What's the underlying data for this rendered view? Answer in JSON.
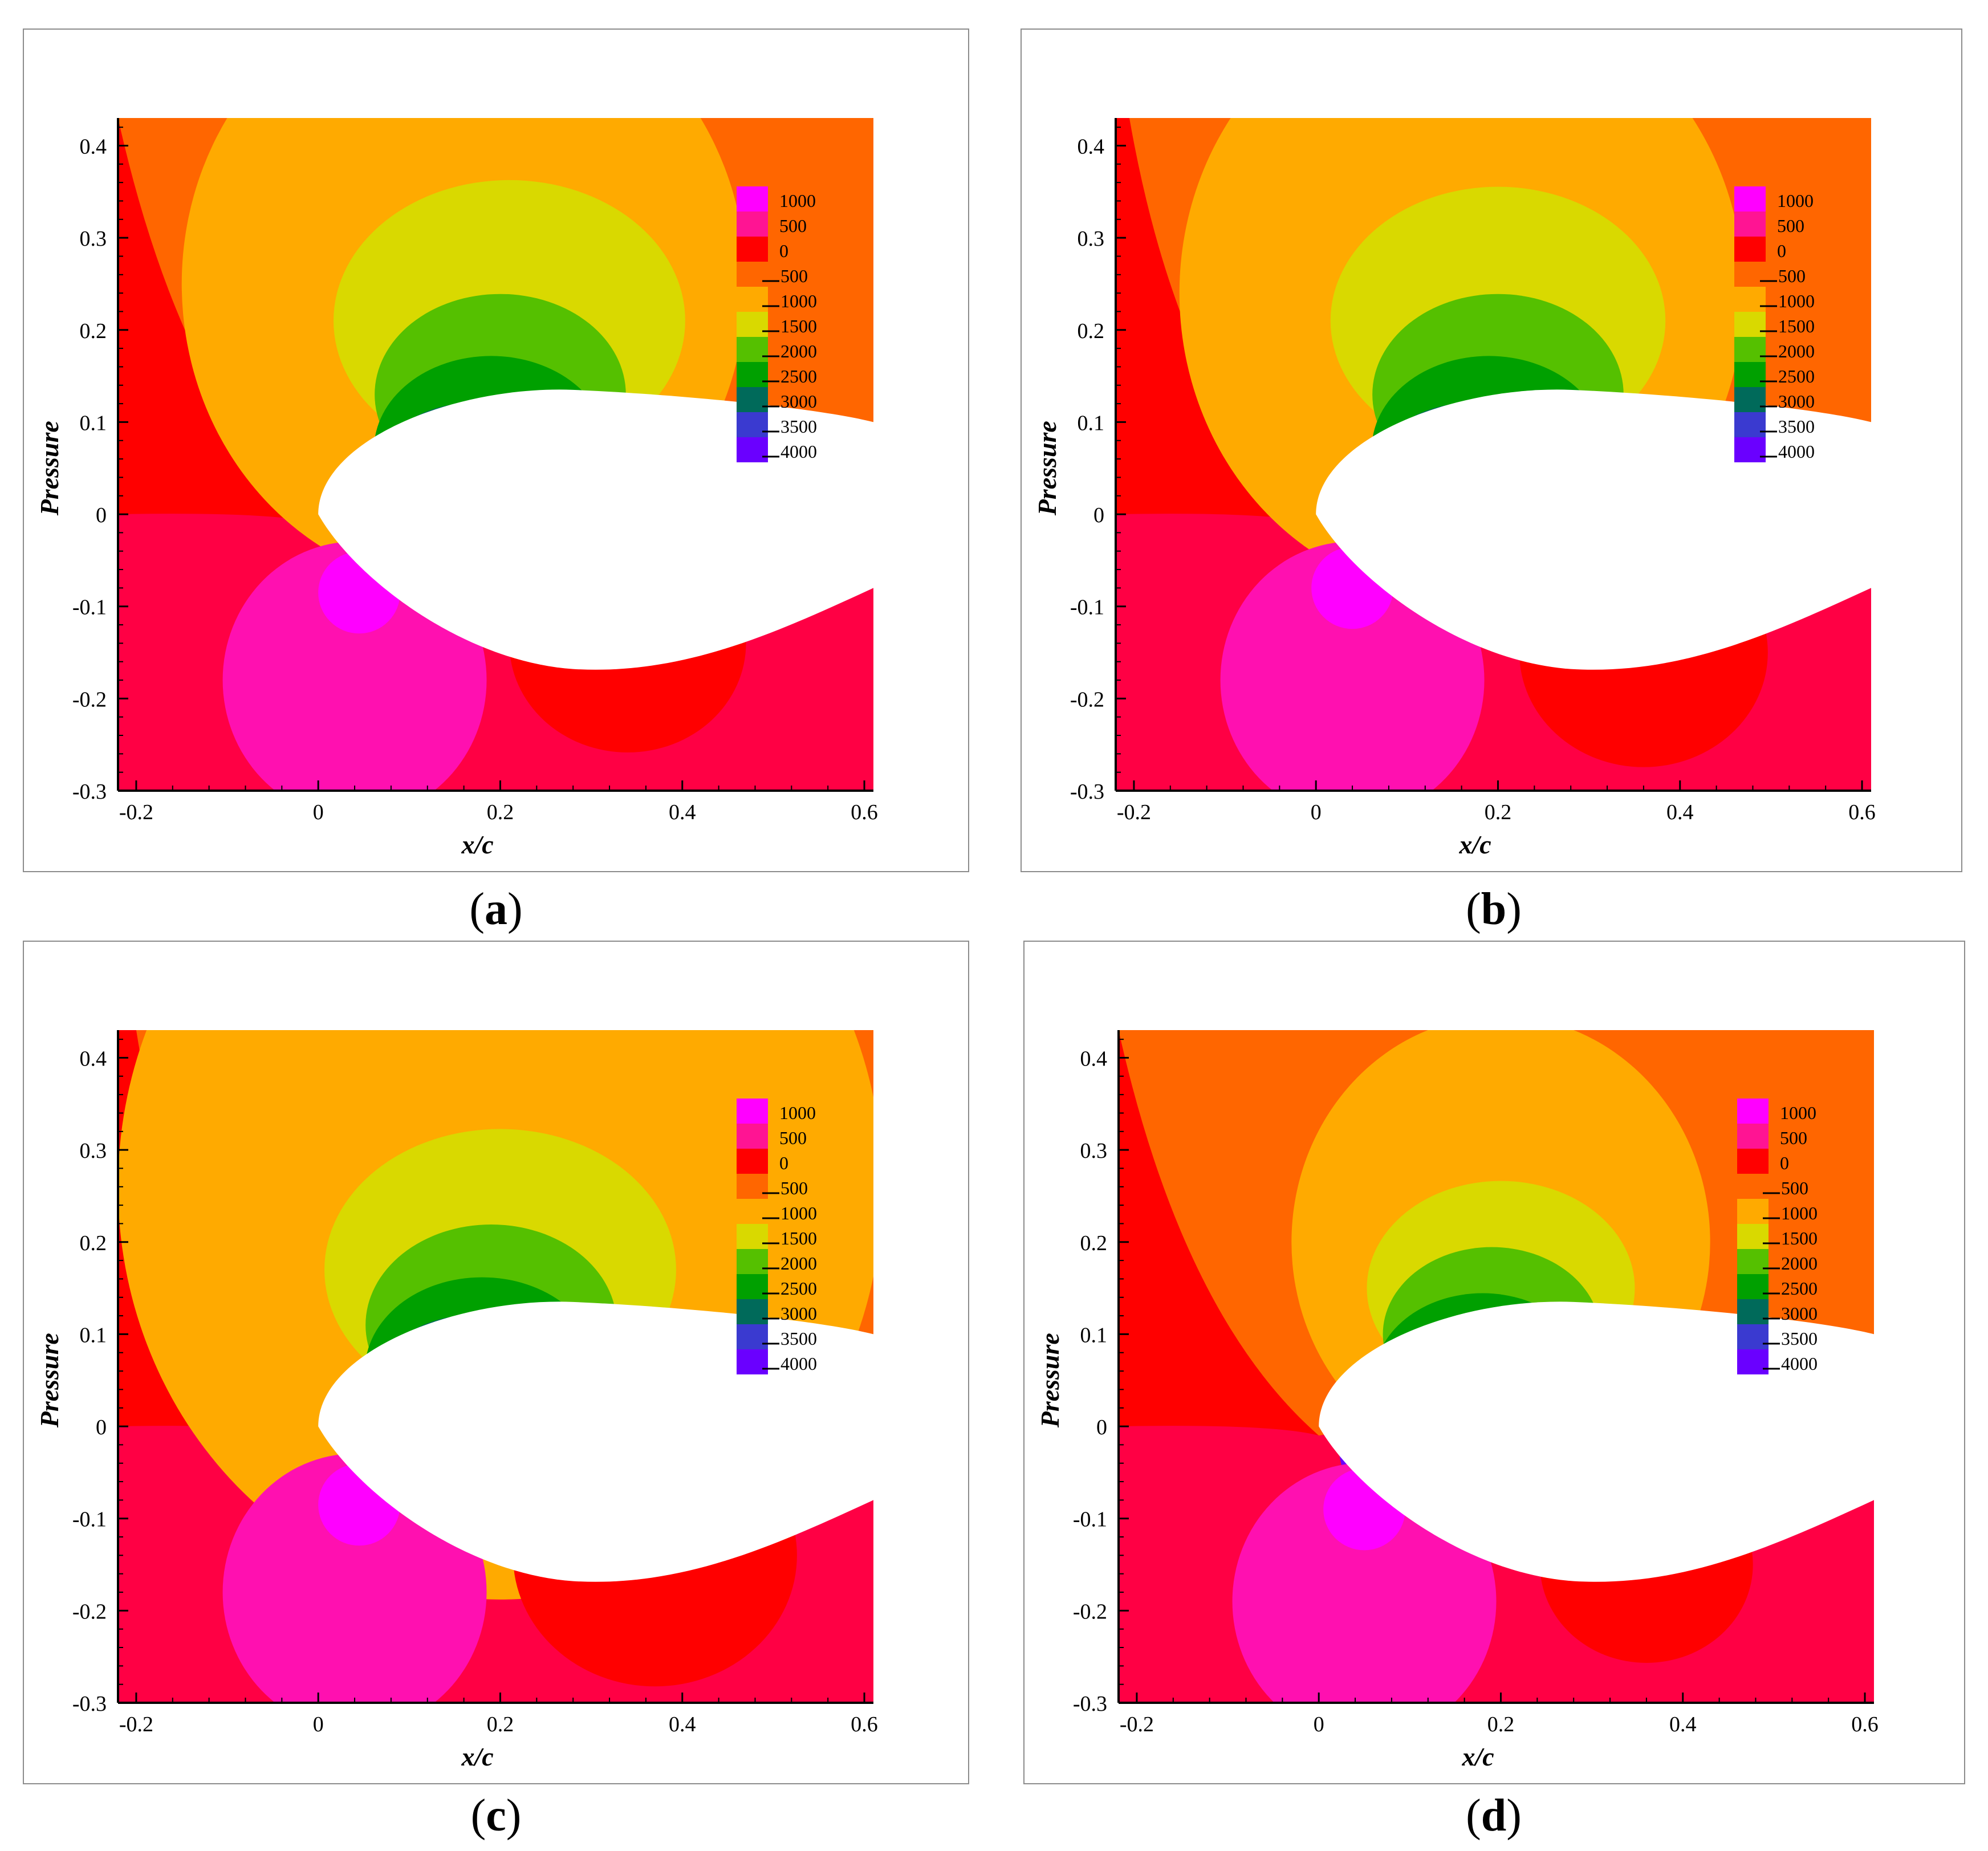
{
  "figure": {
    "panels": [
      {
        "caption_letter": "a"
      },
      {
        "caption_letter": "b"
      },
      {
        "caption_letter": "c"
      },
      {
        "caption_letter": "d"
      }
    ]
  },
  "chart_data": [
    {
      "type": "heatmap",
      "panel": "(a)",
      "xlabel": "x/c",
      "ylabel": "Pressure",
      "xlim": [
        -0.22,
        0.61
      ],
      "ylim": [
        -0.3,
        0.43
      ],
      "xticks": [
        "-0.2",
        "0",
        "0.2",
        "0.4",
        "0.6"
      ],
      "yticks": [
        "0.4",
        "0.3",
        "0.2",
        "0.1",
        "0",
        "-0.1",
        "-0.2",
        "-0.3"
      ],
      "legend": {
        "position": "top-right",
        "levels": [
          "1000",
          "500",
          "0",
          "-500",
          "-1000",
          "-1500",
          "-2000",
          "-2500",
          "-3000",
          "-3500",
          "-4000"
        ],
        "colors": [
          "#ff00ff",
          "#ff1493",
          "#ff0000",
          "#ff6600",
          "#ffaa00",
          "#d9d900",
          "#55c000",
          "#00a000",
          "#006a5a",
          "#3a3ad0",
          "#6a00ff"
        ]
      },
      "background_color": "#ff0044",
      "zones": {
        "upper_red_boundary_x_at_top": -0.22,
        "orange_circle": {
          "center": [
            0.16,
            0.25
          ],
          "radius": 0.31
        },
        "yellow_circle": {
          "center": [
            0.21,
            0.21
          ],
          "radius": 0.21
        },
        "yellowgreen_circle": {
          "center": [
            0.2,
            0.13
          ],
          "radius": 0.15
        },
        "green1_circle": {
          "center": [
            0.19,
            0.07
          ],
          "radius": 0.14
        },
        "green2_circle": {
          "center": [
            0.17,
            0.03
          ],
          "radius": 0.125
        },
        "dark_green_circle": {
          "center": [
            0.16,
            0.0
          ],
          "radius": 0.13
        },
        "blue_circle": {
          "center": [
            0.16,
            -0.02
          ],
          "radius": 0.15
        },
        "magenta_circle": {
          "center": [
            0.04,
            -0.18
          ],
          "radius": 0.145
        },
        "bright_magenta_circle": {
          "center": [
            0.045,
            -0.085
          ],
          "radius": 0.045
        },
        "red_low_circle": {
          "center": [
            0.34,
            -0.14
          ],
          "radius": 0.1
        }
      }
    },
    {
      "type": "heatmap",
      "panel": "(b)",
      "xlabel": "x/c",
      "ylabel": "Pressure",
      "xlim": [
        -0.22,
        0.61
      ],
      "ylim": [
        -0.3,
        0.43
      ],
      "xticks": [
        "-0.2",
        "0",
        "0.2",
        "0.4",
        "0.6"
      ],
      "yticks": [
        "0.4",
        "0.3",
        "0.2",
        "0.1",
        "0",
        "-0.1",
        "-0.2",
        "-0.3"
      ],
      "legend": {
        "position": "top-right",
        "levels": [
          "1000",
          "500",
          "0",
          "-500",
          "-1000",
          "-1500",
          "-2000",
          "-2500",
          "-3000",
          "-3500",
          "-4000"
        ],
        "colors": [
          "#ff00ff",
          "#ff1493",
          "#ff0000",
          "#ff6600",
          "#ffaa00",
          "#d9d900",
          "#55c000",
          "#00a000",
          "#006a5a",
          "#3a3ad0",
          "#6a00ff"
        ]
      },
      "background_color": "#ff0044",
      "zones": {
        "upper_red_boundary_x_at_top": -0.205,
        "orange_circle": {
          "center": [
            0.16,
            0.24
          ],
          "radius": 0.31
        },
        "yellow_circle": {
          "center": [
            0.2,
            0.21
          ],
          "radius": 0.2
        },
        "yellowgreen_circle": {
          "center": [
            0.2,
            0.13
          ],
          "radius": 0.15
        },
        "green1_circle": {
          "center": [
            0.19,
            0.07
          ],
          "radius": 0.14
        },
        "green2_circle": {
          "center": [
            0.17,
            0.03
          ],
          "radius": 0.125
        },
        "dark_green_circle": {
          "center": [
            0.16,
            0.0
          ],
          "radius": 0.13
        },
        "blue_circle": {
          "center": [
            0.16,
            -0.02
          ],
          "radius": 0.15
        },
        "magenta_circle": {
          "center": [
            0.04,
            -0.18
          ],
          "radius": 0.145
        },
        "bright_magenta_circle": {
          "center": [
            0.04,
            -0.08
          ],
          "radius": 0.045
        },
        "red_low_circle": {
          "center": [
            0.36,
            -0.15
          ],
          "radius": 0.105
        }
      }
    },
    {
      "type": "heatmap",
      "panel": "(c)",
      "xlabel": "x/c",
      "ylabel": "Pressure",
      "xlim": [
        -0.22,
        0.61
      ],
      "ylim": [
        -0.3,
        0.43
      ],
      "xticks": [
        "-0.2",
        "0",
        "0.2",
        "0.4",
        "0.6"
      ],
      "yticks": [
        "0.4",
        "0.3",
        "0.2",
        "0.1",
        "0",
        "-0.1",
        "-0.2",
        "-0.3"
      ],
      "legend": {
        "position": "top-right",
        "levels": [
          "1000",
          "500",
          "0",
          "-500",
          "-1000",
          "-1500",
          "-2000",
          "-2500",
          "-3000",
          "-3500",
          "-4000"
        ],
        "colors": [
          "#ff00ff",
          "#ff1493",
          "#ff0000",
          "#ff6600",
          "#ffaa00",
          "#d9d900",
          "#55c000",
          "#00a000",
          "#006a5a",
          "#3a3ad0",
          "#6a00ff"
        ]
      },
      "background_color": "#ff0044",
      "zones": {
        "upper_red_boundary_x_at_top": -0.2,
        "orange_circle": {
          "center": [
            0.2,
            0.26
          ],
          "radius": 0.42
        },
        "yellow_circle": {
          "center": [
            0.2,
            0.17
          ],
          "radius": 0.21
        },
        "yellowgreen_circle": {
          "center": [
            0.19,
            0.11
          ],
          "radius": 0.15
        },
        "green1_circle": {
          "center": [
            0.18,
            0.06
          ],
          "radius": 0.14
        },
        "green2_circle": {
          "center": [
            0.17,
            0.03
          ],
          "radius": 0.125
        },
        "dark_green_circle": {
          "center": [
            0.16,
            0.0
          ],
          "radius": 0.13
        },
        "blue_circle": {
          "center": [
            0.16,
            -0.02
          ],
          "radius": 0.15
        },
        "magenta_circle": {
          "center": [
            0.04,
            -0.18
          ],
          "radius": 0.145
        },
        "bright_magenta_circle": {
          "center": [
            0.045,
            -0.085
          ],
          "radius": 0.045
        },
        "red_low_circle": {
          "center": [
            0.37,
            -0.14
          ],
          "radius": 0.12
        }
      }
    },
    {
      "type": "heatmap",
      "panel": "(d)",
      "xlabel": "x/c",
      "ylabel": "Pressure",
      "xlim": [
        -0.22,
        0.61
      ],
      "ylim": [
        -0.3,
        0.43
      ],
      "xticks": [
        "-0.2",
        "0",
        "0.2",
        "0.4",
        "0.6"
      ],
      "yticks": [
        "0.4",
        "0.3",
        "0.2",
        "0.1",
        "0",
        "-0.1",
        "-0.2",
        "-0.3"
      ],
      "legend": {
        "position": "top-right",
        "levels": [
          "1000",
          "500",
          "0",
          "-500",
          "-1000",
          "-1500",
          "-2000",
          "-2500",
          "-3000",
          "-3500",
          "-4000"
        ],
        "colors": [
          "#ff00ff",
          "#ff1493",
          "#ff0000",
          "#ff6600",
          "#ffaa00",
          "#d9d900",
          "#55c000",
          "#00a000",
          "#006a5a",
          "#3a3ad0",
          "#6a00ff"
        ]
      },
      "background_color": "#ff0044",
      "zones": {
        "upper_red_boundary_x_at_top": -0.22,
        "orange_circle": {
          "center": [
            0.2,
            0.2
          ],
          "radius": 0.23
        },
        "yellow_circle": {
          "center": [
            0.2,
            0.15
          ],
          "radius": 0.16
        },
        "yellowgreen_circle": {
          "center": [
            0.19,
            0.1
          ],
          "radius": 0.13
        },
        "green1_circle": {
          "center": [
            0.18,
            0.05
          ],
          "radius": 0.13
        },
        "green2_circle": {
          "center": [
            0.16,
            0.02
          ],
          "radius": 0.12
        },
        "dark_green_circle": {
          "center": [
            0.15,
            0.0
          ],
          "radius": 0.12
        },
        "blue_circle": {
          "center": [
            0.16,
            -0.02
          ],
          "radius": 0.15
        },
        "magenta_circle": {
          "center": [
            0.05,
            -0.19
          ],
          "radius": 0.145
        },
        "bright_magenta_circle": {
          "center": [
            0.05,
            -0.09
          ],
          "radius": 0.045
        },
        "red_low_circle": {
          "center": [
            0.36,
            -0.15
          ],
          "radius": 0.09
        }
      }
    }
  ]
}
